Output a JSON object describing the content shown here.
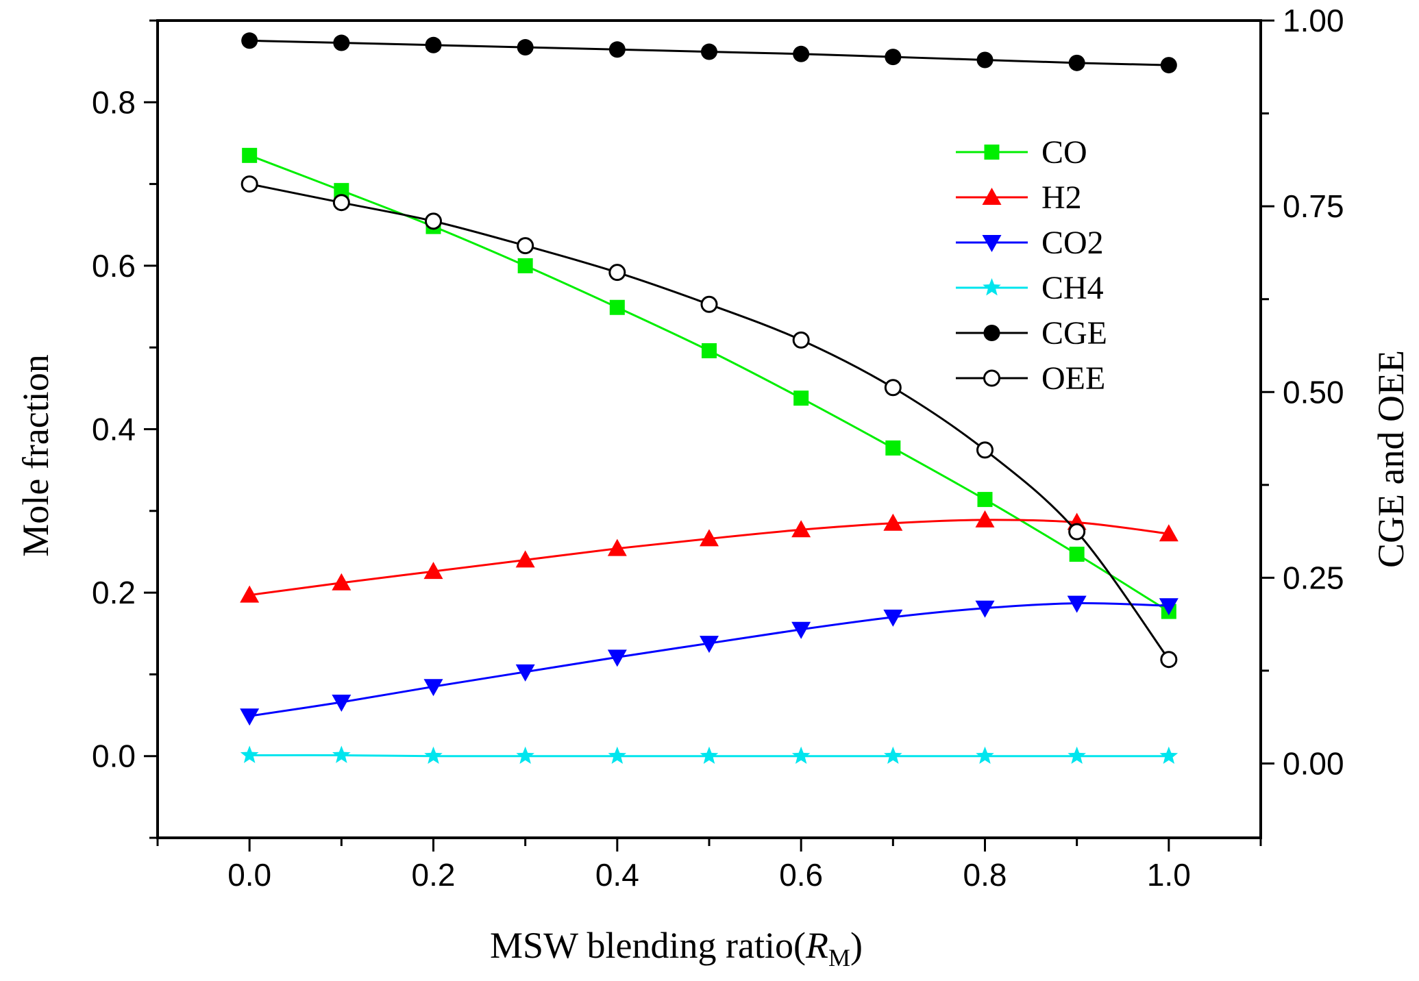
{
  "chart_data": {
    "type": "line",
    "x": [
      0.0,
      0.1,
      0.2,
      0.3,
      0.4,
      0.5,
      0.6,
      0.7,
      0.8,
      0.9,
      1.0
    ],
    "xlabel_main": "MSW blending ratio(",
    "xlabel_symbol": "R",
    "xlabel_sub": "M",
    "xlabel_close": ")",
    "ylabel": "Mole fraction",
    "y2label": "CGE and OEE",
    "xlim": [
      -0.1,
      1.1
    ],
    "ylim": [
      -0.1,
      0.9
    ],
    "y2lim": [
      -0.1,
      1.0
    ],
    "x_ticks": [
      0.0,
      0.2,
      0.4,
      0.6,
      0.8,
      1.0
    ],
    "x_tick_labels": [
      "0.0",
      "0.2",
      "0.4",
      "0.6",
      "0.8",
      "1.0"
    ],
    "y_ticks": [
      0.0,
      0.2,
      0.4,
      0.6,
      0.8
    ],
    "y_tick_labels": [
      "0.0",
      "0.2",
      "0.4",
      "0.6",
      "0.8"
    ],
    "y2_ticks": [
      0.0,
      0.25,
      0.5,
      0.75,
      1.0
    ],
    "y2_tick_labels": [
      "0.00",
      "0.25",
      "0.50",
      "0.75",
      "1.00"
    ],
    "legend_position": "upper-right",
    "series": [
      {
        "name": "CO",
        "axis": "left",
        "color": "#00ee00",
        "marker": "square",
        "values": [
          0.735,
          0.692,
          0.648,
          0.6,
          0.549,
          0.496,
          0.438,
          0.377,
          0.314,
          0.247,
          0.177
        ]
      },
      {
        "name": "H2",
        "axis": "left",
        "color": "#ff0000",
        "marker": "triangle-up",
        "values": [
          0.197,
          0.212,
          0.226,
          0.24,
          0.254,
          0.266,
          0.277,
          0.285,
          0.289,
          0.286,
          0.272
        ]
      },
      {
        "name": "CO2",
        "axis": "left",
        "color": "#0000ff",
        "marker": "triangle-down",
        "values": [
          0.049,
          0.066,
          0.085,
          0.103,
          0.121,
          0.138,
          0.155,
          0.17,
          0.181,
          0.187,
          0.184
        ]
      },
      {
        "name": "CH4",
        "axis": "left",
        "color": "#00e5ee",
        "marker": "star",
        "values": [
          0.001,
          0.001,
          0.0,
          0.0,
          0.0,
          0.0,
          0.0,
          0.0,
          0.0,
          0.0,
          0.0
        ]
      },
      {
        "name": "CGE",
        "axis": "right",
        "color": "#000000",
        "marker": "circle-filled",
        "values": [
          0.973,
          0.97,
          0.967,
          0.964,
          0.961,
          0.958,
          0.955,
          0.951,
          0.947,
          0.943,
          0.94
        ]
      },
      {
        "name": "OEE",
        "axis": "right",
        "color": "#000000",
        "marker": "circle-open",
        "values": [
          0.78,
          0.755,
          0.73,
          0.697,
          0.661,
          0.618,
          0.57,
          0.506,
          0.422,
          0.312,
          0.14
        ]
      }
    ]
  }
}
